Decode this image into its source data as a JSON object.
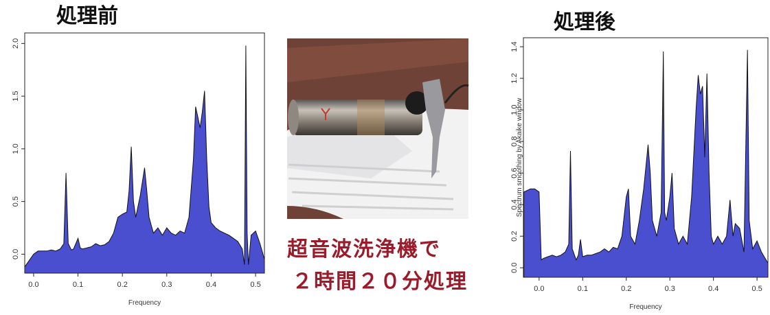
{
  "chart_data": [
    {
      "type": "area",
      "title": "処理前",
      "xlabel": "Frequency",
      "color": "#4a4fcf",
      "x": [
        -0.02,
        -0.01,
        0,
        0.01,
        0.02,
        0.03,
        0.04,
        0.05,
        0.06,
        0.068,
        0.073,
        0.078,
        0.085,
        0.09,
        0.1,
        0.105,
        0.11,
        0.12,
        0.13,
        0.14,
        0.15,
        0.16,
        0.17,
        0.18,
        0.19,
        0.2,
        0.21,
        0.215,
        0.22,
        0.225,
        0.23,
        0.24,
        0.25,
        0.255,
        0.26,
        0.27,
        0.28,
        0.29,
        0.3,
        0.31,
        0.32,
        0.33,
        0.34,
        0.35,
        0.36,
        0.365,
        0.37,
        0.375,
        0.38,
        0.385,
        0.39,
        0.395,
        0.4,
        0.41,
        0.42,
        0.43,
        0.44,
        0.45,
        0.46,
        0.47,
        0.475,
        0.478,
        0.481,
        0.484,
        0.49,
        0.5,
        0.51,
        0.52
      ],
      "values": [
        -0.12,
        -0.06,
        0.0,
        0.03,
        0.03,
        0.03,
        0.04,
        0.03,
        0.05,
        0.1,
        0.77,
        0.1,
        0.04,
        0.05,
        0.15,
        0.06,
        0.05,
        0.06,
        0.07,
        0.1,
        0.08,
        0.09,
        0.12,
        0.2,
        0.35,
        0.38,
        0.4,
        0.6,
        1.02,
        0.5,
        0.35,
        0.55,
        0.82,
        0.6,
        0.35,
        0.2,
        0.25,
        0.18,
        0.25,
        0.2,
        0.18,
        0.22,
        0.2,
        0.35,
        0.9,
        1.4,
        1.3,
        1.2,
        1.35,
        1.55,
        0.9,
        0.45,
        0.3,
        0.25,
        0.22,
        0.2,
        0.18,
        0.15,
        0.12,
        0.05,
        -0.1,
        1.98,
        0.2,
        -0.1,
        0.18,
        0.22,
        0.1,
        -0.05
      ],
      "xlim": [
        -0.02,
        0.52
      ],
      "ylim": [
        -0.18,
        2.1
      ],
      "xticks": [
        {
          "value": 0,
          "label": "0.0"
        },
        0.1,
        0.2,
        0.3,
        0.4,
        0.5
      ],
      "yticks": [
        {
          "value": 0,
          "label": "0.0"
        },
        0.5,
        {
          "value": 1,
          "label": "1.0"
        },
        1.5,
        {
          "value": 2,
          "label": "2.0"
        }
      ]
    },
    {
      "type": "area",
      "title": "処理後",
      "xlabel": "Frequency",
      "ylabel": "Spectrum smoothing by  Akaike  window",
      "color": "#4a4fcf",
      "x": [
        -0.035,
        -0.02,
        -0.01,
        0,
        0.005,
        0.01,
        0.02,
        0.03,
        0.04,
        0.05,
        0.06,
        0.068,
        0.072,
        0.076,
        0.085,
        0.09,
        0.095,
        0.1,
        0.11,
        0.12,
        0.13,
        0.14,
        0.15,
        0.16,
        0.17,
        0.18,
        0.19,
        0.2,
        0.205,
        0.21,
        0.22,
        0.23,
        0.24,
        0.25,
        0.255,
        0.26,
        0.27,
        0.28,
        0.285,
        0.288,
        0.292,
        0.3,
        0.305,
        0.31,
        0.32,
        0.33,
        0.34,
        0.35,
        0.36,
        0.365,
        0.37,
        0.375,
        0.38,
        0.385,
        0.39,
        0.395,
        0.4,
        0.41,
        0.42,
        0.43,
        0.438,
        0.445,
        0.45,
        0.46,
        0.47,
        0.478,
        0.482,
        0.49,
        0.5,
        0.51,
        0.525
      ],
      "values": [
        0.48,
        0.5,
        0.5,
        0.48,
        0.05,
        0.06,
        0.07,
        0.08,
        0.07,
        0.08,
        0.1,
        0.15,
        0.74,
        0.12,
        0.05,
        0.08,
        0.18,
        0.07,
        0.08,
        0.08,
        0.09,
        0.1,
        0.12,
        0.1,
        0.13,
        0.12,
        0.2,
        0.45,
        0.5,
        0.2,
        0.15,
        0.3,
        0.5,
        0.78,
        0.6,
        0.3,
        0.2,
        0.35,
        1.37,
        0.35,
        0.3,
        0.45,
        0.6,
        0.25,
        0.15,
        0.2,
        0.15,
        0.45,
        1.0,
        1.22,
        1.1,
        1.15,
        0.7,
        1.23,
        0.6,
        0.2,
        0.15,
        0.2,
        0.15,
        0.2,
        0.43,
        0.2,
        0.28,
        0.25,
        0.1,
        1.38,
        0.3,
        0.12,
        0.17,
        0.1,
        0.03
      ],
      "xlim": [
        -0.036,
        0.525
      ],
      "ylim": [
        -0.06,
        1.457
      ],
      "xticks": [
        {
          "value": 0,
          "label": "0.0"
        },
        0.1,
        0.2,
        0.3,
        0.4,
        0.5
      ],
      "yticks": [
        {
          "value": 0,
          "label": "0.0"
        },
        0.2,
        0.4,
        0.6,
        0.8,
        {
          "value": 1,
          "label": "1.0"
        },
        1.2,
        1.4
      ]
    }
  ],
  "caption": [
    "超音波洗浄機で",
    "２時間２０分処理"
  ]
}
